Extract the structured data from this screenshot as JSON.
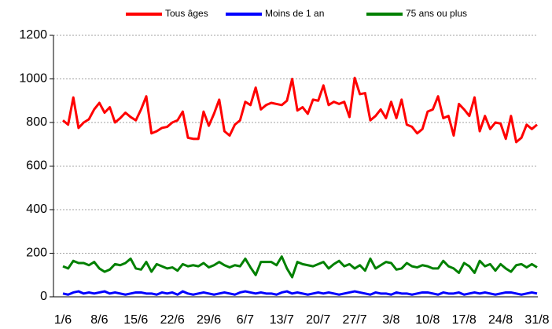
{
  "chart_data": {
    "type": "line",
    "categories": [
      "1/6",
      null,
      null,
      null,
      null,
      null,
      null,
      "8/6",
      null,
      null,
      null,
      null,
      null,
      null,
      "15/6",
      null,
      null,
      null,
      null,
      null,
      null,
      "22/6",
      null,
      null,
      null,
      null,
      null,
      null,
      "29/6",
      null,
      null,
      null,
      null,
      null,
      null,
      "6/7",
      null,
      null,
      null,
      null,
      null,
      null,
      "13/7",
      null,
      null,
      null,
      null,
      null,
      null,
      "20/7",
      null,
      null,
      null,
      null,
      null,
      null,
      "27/7",
      null,
      null,
      null,
      null,
      null,
      null,
      "3/8",
      null,
      null,
      null,
      null,
      null,
      null,
      "10/8",
      null,
      null,
      null,
      null,
      null,
      null,
      "17/8",
      null,
      null,
      null,
      null,
      null,
      null,
      "24/8",
      null,
      null,
      null,
      null,
      null,
      null,
      "31/8"
    ],
    "series": [
      {
        "name": "Tous âges",
        "color": "#ff0000",
        "values": [
          810,
          790,
          915,
          775,
          800,
          815,
          860,
          890,
          845,
          870,
          800,
          820,
          845,
          825,
          810,
          860,
          920,
          750,
          760,
          775,
          780,
          800,
          810,
          850,
          730,
          725,
          725,
          850,
          785,
          840,
          905,
          760,
          740,
          790,
          810,
          895,
          880,
          960,
          860,
          880,
          890,
          885,
          880,
          900,
          1000,
          855,
          870,
          840,
          905,
          900,
          970,
          880,
          895,
          885,
          895,
          825,
          1005,
          930,
          935,
          810,
          830,
          860,
          820,
          895,
          820,
          905,
          790,
          780,
          750,
          770,
          850,
          860,
          920,
          820,
          830,
          740,
          885,
          860,
          830,
          915,
          760,
          830,
          770,
          800,
          795,
          725,
          830,
          710,
          730,
          790,
          770,
          790
        ]
      },
      {
        "name": "Moins de 1 an",
        "color": "#0000ff",
        "values": [
          15,
          10,
          20,
          25,
          15,
          20,
          15,
          20,
          25,
          15,
          20,
          15,
          10,
          15,
          20,
          20,
          15,
          15,
          10,
          20,
          15,
          20,
          10,
          25,
          15,
          10,
          15,
          20,
          15,
          10,
          15,
          20,
          15,
          10,
          20,
          25,
          20,
          15,
          20,
          15,
          15,
          10,
          20,
          25,
          15,
          20,
          15,
          10,
          15,
          20,
          15,
          20,
          15,
          10,
          15,
          20,
          25,
          20,
          15,
          10,
          20,
          15,
          15,
          10,
          20,
          15,
          15,
          10,
          15,
          20,
          20,
          15,
          10,
          20,
          15,
          15,
          20,
          10,
          15,
          20,
          15,
          20,
          15,
          10,
          15,
          20,
          20,
          15,
          10,
          15,
          20,
          15
        ]
      },
      {
        "name": "75 ans ou plus",
        "color": "#008000",
        "values": [
          140,
          130,
          165,
          155,
          155,
          145,
          160,
          130,
          115,
          125,
          150,
          145,
          155,
          175,
          130,
          125,
          160,
          115,
          150,
          140,
          130,
          135,
          120,
          150,
          140,
          145,
          140,
          155,
          135,
          145,
          160,
          145,
          135,
          145,
          140,
          175,
          135,
          100,
          160,
          160,
          160,
          145,
          185,
          130,
          90,
          160,
          150,
          145,
          140,
          150,
          160,
          130,
          150,
          165,
          140,
          150,
          130,
          145,
          120,
          175,
          130,
          145,
          160,
          155,
          125,
          130,
          155,
          140,
          135,
          145,
          140,
          130,
          130,
          165,
          140,
          130,
          110,
          155,
          140,
          110,
          165,
          140,
          150,
          120,
          150,
          130,
          115,
          145,
          150,
          135,
          150,
          135
        ]
      }
    ],
    "ylim": [
      0,
      1200
    ],
    "yticks": [
      0,
      200,
      400,
      600,
      800,
      1000,
      1200
    ],
    "grid": true,
    "legend": "top"
  }
}
